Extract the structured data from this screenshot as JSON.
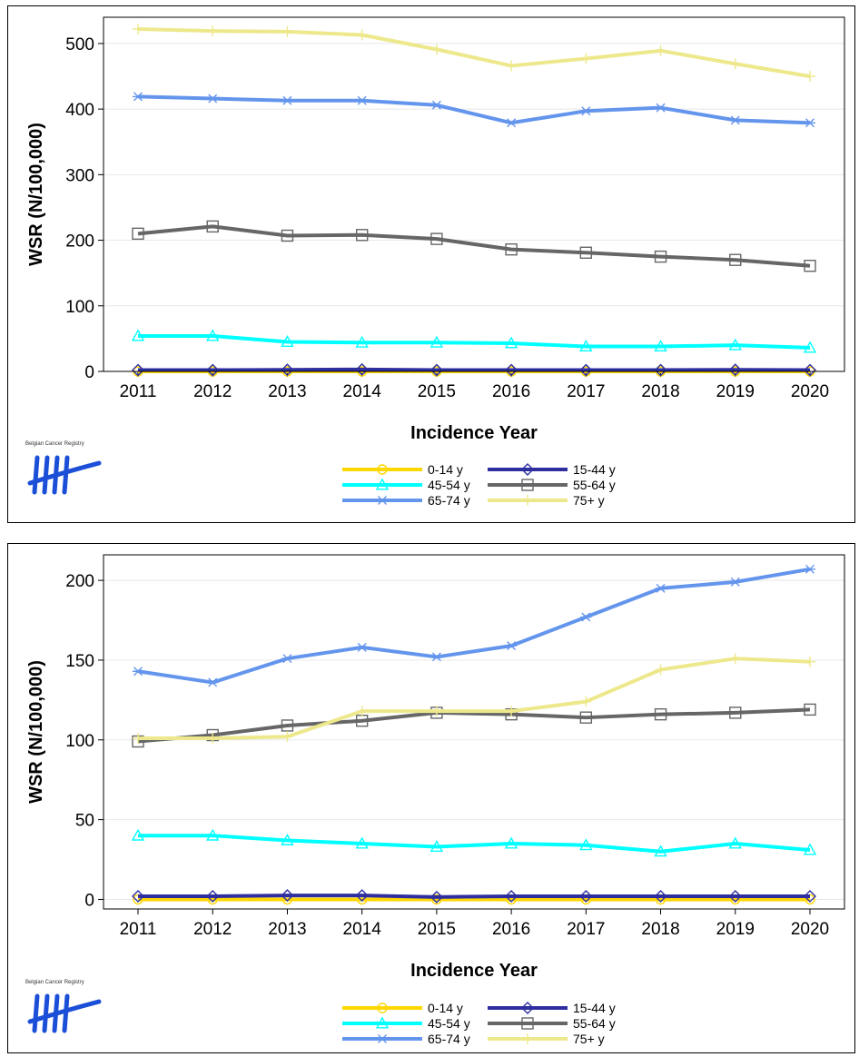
{
  "logo": {
    "text": "Belgian Cancer Registry"
  },
  "chart_data": [
    {
      "type": "line",
      "xlabel": "Incidence Year",
      "ylabel": "WSR (N/100,000)",
      "x": [
        2011,
        2012,
        2013,
        2014,
        2015,
        2016,
        2017,
        2018,
        2019,
        2020
      ],
      "ylim": [
        0,
        540
      ],
      "yticks": [
        0,
        100,
        200,
        300,
        400,
        500
      ],
      "grid": true,
      "legend_position": "bottom",
      "series": [
        {
          "name": "0-14 y",
          "color": "#FFD700",
          "marker": "circle",
          "values": [
            0,
            0,
            0,
            0,
            0,
            0,
            0,
            0,
            0,
            0
          ]
        },
        {
          "name": "15-44 y",
          "color": "#2E2EA0",
          "marker": "diamond",
          "values": [
            2,
            2,
            2.5,
            3,
            2,
            2,
            2,
            2,
            2.5,
            2
          ]
        },
        {
          "name": "45-54 y",
          "color": "#00FFFF",
          "marker": "triangle",
          "values": [
            54,
            54,
            45,
            44,
            44,
            43,
            38,
            38,
            40,
            36
          ]
        },
        {
          "name": "55-64 y",
          "color": "#666666",
          "marker": "square",
          "values": [
            210,
            221,
            207,
            208,
            202,
            186,
            181,
            175,
            170,
            161
          ]
        },
        {
          "name": "65-74 y",
          "color": "#6495ED",
          "marker": "asterisk",
          "values": [
            419,
            416,
            413,
            413,
            406,
            379,
            397,
            402,
            383,
            379
          ]
        },
        {
          "name": "75+ y",
          "color": "#EEE88C",
          "marker": "plus",
          "values": [
            522,
            519,
            518,
            513,
            491,
            466,
            477,
            489,
            469,
            450
          ]
        }
      ]
    },
    {
      "type": "line",
      "xlabel": "Incidence Year",
      "ylabel": "WSR (N/100,000)",
      "x": [
        2011,
        2012,
        2013,
        2014,
        2015,
        2016,
        2017,
        2018,
        2019,
        2020
      ],
      "ylim": [
        -6,
        216
      ],
      "yticks": [
        0,
        50,
        100,
        150,
        200
      ],
      "grid": true,
      "legend_position": "bottom",
      "series": [
        {
          "name": "0-14 y",
          "color": "#FFD700",
          "marker": "circle",
          "values": [
            0,
            0,
            0,
            0,
            0,
            0,
            0,
            0,
            0,
            0
          ]
        },
        {
          "name": "15-44 y",
          "color": "#2E2EA0",
          "marker": "diamond",
          "values": [
            2,
            2,
            2.5,
            2.5,
            1.5,
            2,
            2,
            2,
            2,
            2
          ]
        },
        {
          "name": "45-54 y",
          "color": "#00FFFF",
          "marker": "triangle",
          "values": [
            40,
            40,
            37,
            35,
            33,
            35,
            34,
            30,
            35,
            31
          ]
        },
        {
          "name": "55-64 y",
          "color": "#666666",
          "marker": "square",
          "values": [
            99,
            103,
            109,
            112,
            117,
            116,
            114,
            116,
            117,
            119
          ]
        },
        {
          "name": "65-74 y",
          "color": "#6495ED",
          "marker": "asterisk",
          "values": [
            143,
            136,
            151,
            158,
            152,
            159,
            177,
            195,
            199,
            207
          ]
        },
        {
          "name": "75+ y",
          "color": "#EEE88C",
          "marker": "plus",
          "values": [
            101,
            101,
            102,
            118,
            118,
            118,
            124,
            144,
            151,
            149
          ]
        }
      ]
    }
  ]
}
